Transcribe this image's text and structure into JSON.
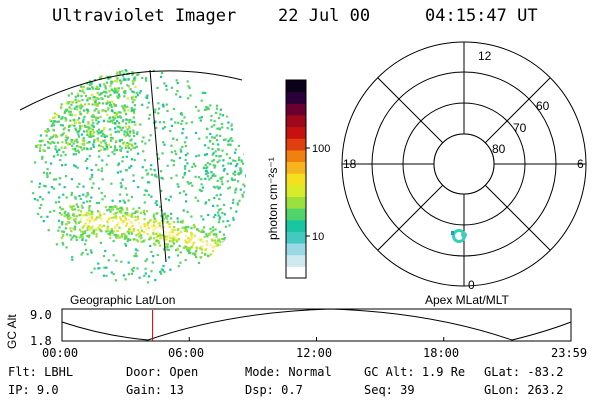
{
  "header": {
    "instrument": "Ultraviolet Imager",
    "date": "22 Jul 00",
    "time": "04:15:47 UT"
  },
  "colorbar": {
    "unit_label": "photon cm⁻²s⁻¹",
    "ticks": [
      "100",
      "10"
    ],
    "colors": [
      "#ffffff",
      "#cfe9f0",
      "#9ad8e6",
      "#45c8c0",
      "#19c4a0",
      "#4fd36a",
      "#9be03c",
      "#d8ec2a",
      "#f5e020",
      "#f8b420",
      "#f08010",
      "#e04010",
      "#c81010",
      "#a0081c",
      "#6a0030",
      "#2a0038",
      "#0a0018"
    ]
  },
  "labels": {
    "geographic": "Geographic Lat/Lon",
    "apex": "Apex MLat/MLT"
  },
  "polar_plot": {
    "mlt_labels": {
      "top": "12",
      "left": "18",
      "right": "6",
      "bottom": "0"
    },
    "mlat_labels": [
      "60",
      "70",
      "80"
    ]
  },
  "altitude_plot": {
    "ylabel": "GC Alt",
    "yticks": [
      "9.0",
      "1.8"
    ],
    "xticks": [
      "00:00",
      "06:00",
      "12:00",
      "18:00",
      "23:59"
    ],
    "current_time_fraction": 0.178
  },
  "info": {
    "row1": [
      {
        "label": "Flt:",
        "value": "LBHL"
      },
      {
        "label": "Door:",
        "value": "Open"
      },
      {
        "label": "Mode:",
        "value": "Normal"
      },
      {
        "label": "GC Alt:",
        "value": "1.9 Re"
      },
      {
        "label": "GLat:",
        "value": "-83.2"
      }
    ],
    "row2": [
      {
        "label": "IP:",
        "value": "9.0"
      },
      {
        "label": "Gain:",
        "value": "13"
      },
      {
        "label": "Dsp:",
        "value": "0.7"
      },
      {
        "label": "Seq:",
        "value": "39"
      },
      {
        "label": "GLon:",
        "value": "263.2"
      }
    ]
  }
}
